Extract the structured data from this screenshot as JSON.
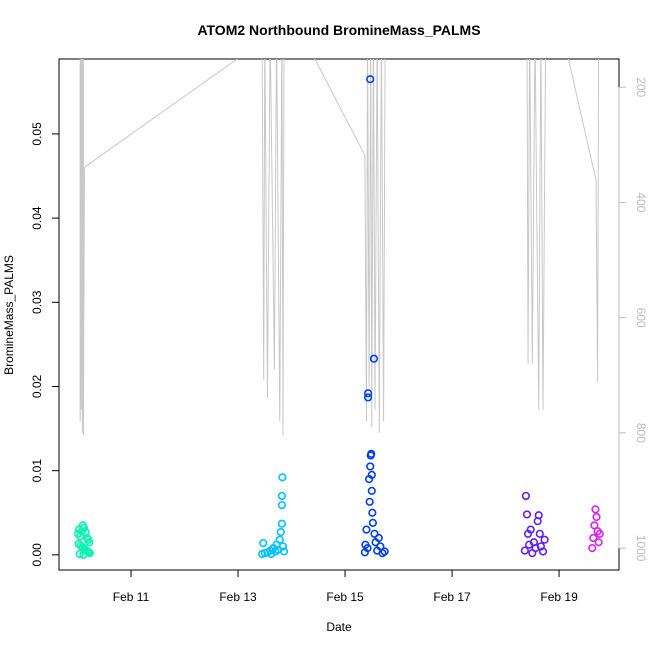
{
  "chart_data": {
    "type": "scatter",
    "title": "ATOM2 Northbound BromineMass_PALMS",
    "x_label": "Date",
    "y_label": "BromineMass_PALMS",
    "xlim": [
      9.654,
      20.12
    ],
    "xticks": [
      {
        "value": 11,
        "label": "Feb 11"
      },
      {
        "value": 13,
        "label": "Feb 13"
      },
      {
        "value": 15,
        "label": "Feb 15"
      },
      {
        "value": 17,
        "label": "Feb 17"
      },
      {
        "value": 19,
        "label": "Feb 19"
      }
    ],
    "ylim": [
      -0.0018,
      0.0589
    ],
    "yticks": [
      {
        "value": 0,
        "label": "0.00"
      },
      {
        "value": 0.01,
        "label": "0.01"
      },
      {
        "value": 0.02,
        "label": "0.02"
      },
      {
        "value": 0.03,
        "label": "0.03"
      },
      {
        "value": 0.04,
        "label": "0.04"
      },
      {
        "value": 0.05,
        "label": "0.05"
      }
    ],
    "y2lim": [
      1038,
      151
    ],
    "y2ticks": [
      200,
      400,
      600,
      800,
      1000
    ],
    "y2_color": "#bbbbbb",
    "series": [
      {
        "color": "#00f5b0",
        "x": [
          10.01,
          10.03,
          10.05,
          10.08,
          10.1,
          10.12,
          10.15,
          10.18,
          10.2,
          10.22,
          10.02,
          10.06,
          10.09,
          10.13,
          10.16,
          10.19,
          10.21,
          10.23,
          10.04,
          10.11
        ],
        "values": [
          0.0025,
          0.003,
          0.0022,
          0.0028,
          0.0035,
          0.0032,
          0.0027,
          0.002,
          0.0018,
          0.0015,
          0.0013,
          0.0011,
          0.0009,
          0.0007,
          0.0005,
          0.0004,
          0.0003,
          0.0002,
          0.0001,
          0.0
        ]
      },
      {
        "color": "#00c0ff",
        "x": [
          13.45,
          13.47,
          13.5,
          13.55,
          13.6,
          13.62,
          13.66,
          13.7,
          13.72,
          13.75,
          13.78,
          13.8,
          13.82,
          13.82,
          13.82,
          13.83,
          13.84,
          13.86
        ],
        "values": [
          0.0001,
          0.0014,
          0.0002,
          0.0003,
          0.0005,
          0.0001,
          0.0008,
          0.0004,
          0.0012,
          0.0006,
          0.0018,
          0.0027,
          0.0037,
          0.0059,
          0.007,
          0.0092,
          0.001,
          0.0004
        ]
      },
      {
        "color": "#0040f0",
        "x": [
          15.37,
          15.38,
          15.4,
          15.42,
          15.43,
          15.43,
          15.45,
          15.46,
          15.47,
          15.47,
          15.48,
          15.49,
          15.5,
          15.5,
          15.51,
          15.52,
          15.54,
          15.55,
          15.57,
          15.6,
          15.63,
          15.66,
          15.7,
          15.74
        ],
        "values": [
          0.0003,
          0.0012,
          0.003,
          0.0008,
          0.0187,
          0.0192,
          0.009,
          0.0063,
          0.0565,
          0.0105,
          0.0118,
          0.012,
          0.0095,
          0.0076,
          0.005,
          0.0038,
          0.0233,
          0.0025,
          0.0015,
          0.0005,
          0.002,
          0.001,
          0.0002,
          0.0004
        ]
      },
      {
        "color": "#6020f8",
        "x": [
          18.36,
          18.38,
          18.4,
          18.42,
          18.44,
          18.47,
          18.5,
          18.53,
          18.56,
          18.6,
          18.62,
          18.64,
          18.66,
          18.7,
          18.73
        ],
        "values": [
          0.0005,
          0.007,
          0.0048,
          0.0025,
          0.0012,
          0.003,
          0.0002,
          0.0015,
          0.0008,
          0.004,
          0.0047,
          0.0025,
          0.001,
          0.0004,
          0.0018
        ]
      },
      {
        "color": "#d820f0",
        "x": [
          19.62,
          19.64,
          19.66,
          19.68,
          19.7,
          19.72,
          19.74,
          19.76
        ],
        "values": [
          0.0008,
          0.002,
          0.0035,
          0.0054,
          0.0045,
          0.0028,
          0.0015,
          0.0025
        ]
      },
      {
        "color": "#c8c8c8",
        "axis": "y2",
        "line": true,
        "x": [
          10.05,
          10.05,
          10.07,
          10.07,
          10.09,
          10.09,
          10.11,
          10.11,
          10.13,
          13.45,
          13.48,
          13.5,
          13.55,
          13.6,
          13.68,
          13.72,
          13.78,
          13.82,
          13.84,
          13.86,
          14.15,
          15.37,
          15.4,
          15.42,
          15.45,
          15.48,
          15.5,
          15.53,
          15.56,
          15.6,
          15.64,
          15.68,
          15.72,
          15.75,
          18.4,
          18.42,
          18.45,
          18.5,
          18.55,
          18.62,
          18.66,
          18.7,
          18.75,
          19.05,
          19.69,
          19.72,
          19.74
        ],
        "values": [
          100,
          780,
          100,
          760,
          100,
          800,
          100,
          805,
          339,
          120,
          708,
          100,
          740,
          100,
          690,
          100,
          780,
          100,
          805,
          100,
          100,
          318,
          780,
          100,
          720,
          100,
          790,
          100,
          760,
          100,
          800,
          100,
          780,
          100,
          100,
          680,
          100,
          680,
          100,
          760,
          100,
          760,
          100,
          100,
          361,
          712,
          100
        ]
      }
    ]
  }
}
